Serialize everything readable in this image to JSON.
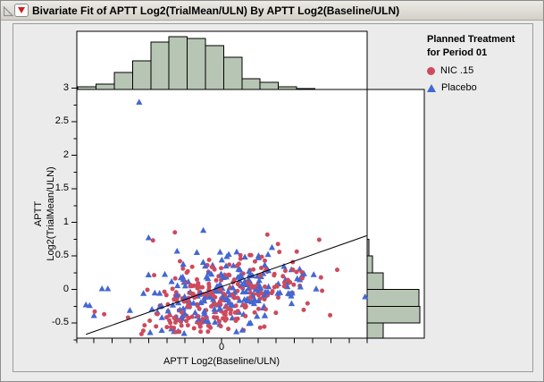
{
  "window": {
    "title": "Bivariate Fit of APTT Log2(TrialMean/ULN) By APTT Log2(Baseline/ULN)",
    "titlebar_icons": {
      "disclosure_icon": "open-corner-triangle",
      "menu_icon": "red-triangle-down"
    }
  },
  "axes": {
    "y_title_line1": "APTT",
    "y_title_line2": "Log2(TrialMean/ULN)",
    "x_title": "APTT Log2(Baseline/ULN)",
    "y_ticks": [
      "3",
      "2.5",
      "2",
      "1.5",
      "1",
      "0.5",
      "0",
      "-0.5"
    ],
    "x_tick_label": "0"
  },
  "legend": {
    "title_line1": "Planned Treatment",
    "title_line2": "for Period 01",
    "items": [
      {
        "label": "NIC .15",
        "marker": "circle",
        "color": "#ce4a5c"
      },
      {
        "label": "Placebo",
        "marker": "triangle",
        "color": "#4467d2"
      }
    ]
  },
  "colors": {
    "histogram_fill": "#b7c6b4",
    "plot_background": "#ffffff",
    "panel_background": "#ebebeb",
    "fit_line": "#000000",
    "red_button": "#cf1f1f"
  },
  "chart_data": {
    "type": "scatter",
    "title": "Bivariate Fit of APTT Log2(TrialMean/ULN) By APTT Log2(Baseline/ULN)",
    "xlabel": "APTT Log2(Baseline/ULN)",
    "ylabel": "APTT Log2(TrialMean/ULN)",
    "xlim": [
      -2.0,
      2.0
    ],
    "ylim": [
      -0.73,
      3.0
    ],
    "x_labeled_ticks": [
      0
    ],
    "y_labeled_ticks": [
      3,
      2.5,
      2,
      1.5,
      1,
      0.5,
      0,
      -0.5
    ],
    "minor_tick_step": 0.25,
    "grid": false,
    "legend_position": "top-right",
    "fit_line": {
      "x1": -1.86,
      "y1": -0.67,
      "x2": 1.99,
      "y2": 0.8,
      "slope": 0.38,
      "intercept": 0.04
    },
    "marginal_histograms": {
      "x_axis_bins": {
        "bin_start": -1.97,
        "bin_width": 0.25,
        "rel_counts": [
          3,
          6,
          19,
          32,
          53,
          59,
          57,
          49,
          36,
          12,
          8,
          3,
          1
        ]
      },
      "y_axis_bins": {
        "bin_start": -0.75,
        "bin_width": 0.25,
        "rel_counts": [
          18,
          59,
          58,
          18,
          6,
          2
        ]
      }
    },
    "scatter": {
      "seed": 42,
      "clip": {
        "x": [
          -1.94,
          1.96
        ],
        "y": [
          -0.68,
          0.93
        ]
      },
      "groups": [
        {
          "name": "NIC .15",
          "marker": "circle",
          "color": "#ce4a5c",
          "n": 250,
          "center": [
            -0.03,
            -0.11
          ],
          "sd": [
            0.58,
            0.3
          ],
          "corr": 0.45,
          "extra_points": [
            [
              -1.74,
              -0.33
            ],
            [
              -1.61,
              -0.37
            ],
            [
              -0.94,
              0.73
            ],
            [
              -0.64,
              0.85
            ],
            [
              1.34,
              0.74
            ],
            [
              -0.58,
              -0.63
            ],
            [
              0.53,
              -0.57
            ],
            [
              -0.57,
              0.42
            ]
          ]
        },
        {
          "name": "Placebo",
          "marker": "triangle",
          "color": "#4467d2",
          "n": 205,
          "center": [
            -0.02,
            -0.1
          ],
          "sd": [
            0.58,
            0.3
          ],
          "corr": 0.45,
          "extra_points": [
            [
              -1.86,
              -0.23
            ],
            [
              -1.81,
              -0.24
            ],
            [
              -1.75,
              -0.39
            ],
            [
              -1.64,
              0.01
            ],
            [
              -1.56,
              0.01
            ],
            [
              1.97,
              -0.11
            ],
            [
              -1.13,
              2.79
            ],
            [
              -1.0,
              0.77
            ],
            [
              -0.61,
              0.57
            ],
            [
              -0.25,
              0.88
            ],
            [
              -0.82,
              -0.61
            ]
          ]
        }
      ]
    }
  }
}
